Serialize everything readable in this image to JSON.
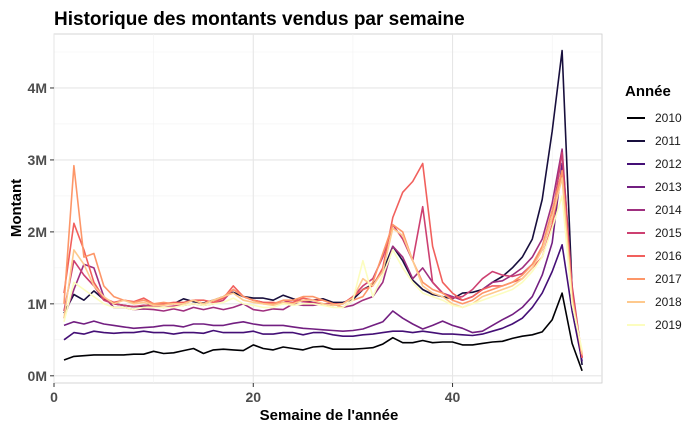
{
  "chart_data": {
    "type": "line",
    "title": "Historique des montants vendus par semaine",
    "xlabel": "Semaine de l'année",
    "ylabel": "Montant",
    "xlim": [
      0,
      55
    ],
    "ylim": [
      -0.1,
      4.75
    ],
    "y_unit": "millions",
    "x_ticks": [
      0,
      20,
      40
    ],
    "x_tick_labels": [
      "0",
      "20",
      "40"
    ],
    "y_ticks": [
      0,
      1,
      2,
      3,
      4
    ],
    "y_tick_labels": [
      "0M",
      "1M",
      "2M",
      "3M",
      "4M"
    ],
    "grid": true,
    "legend": {
      "title": "Année",
      "position": "right"
    },
    "series": [
      {
        "name": "2010",
        "color": "#000004",
        "x": [
          1,
          2,
          3,
          4,
          5,
          6,
          7,
          8,
          9,
          10,
          11,
          12,
          13,
          14,
          15,
          16,
          17,
          18,
          19,
          20,
          21,
          22,
          23,
          24,
          25,
          26,
          27,
          28,
          29,
          30,
          31,
          32,
          33,
          34,
          35,
          36,
          37,
          38,
          39,
          40,
          41,
          42,
          43,
          44,
          45,
          46,
          47,
          48,
          49,
          50,
          51,
          52,
          53
        ],
        "y": [
          0.22,
          0.27,
          0.28,
          0.29,
          0.29,
          0.29,
          0.29,
          0.3,
          0.3,
          0.34,
          0.31,
          0.32,
          0.35,
          0.38,
          0.31,
          0.36,
          0.37,
          0.36,
          0.35,
          0.43,
          0.38,
          0.36,
          0.4,
          0.38,
          0.36,
          0.4,
          0.41,
          0.37,
          0.37,
          0.37,
          0.38,
          0.39,
          0.44,
          0.53,
          0.46,
          0.46,
          0.49,
          0.46,
          0.47,
          0.47,
          0.43,
          0.43,
          0.45,
          0.47,
          0.48,
          0.52,
          0.55,
          0.57,
          0.61,
          0.78,
          1.15,
          0.45,
          0.07
        ]
      },
      {
        "name": "2011",
        "color": "#180f3d",
        "x": [
          1,
          2,
          3,
          4,
          5,
          6,
          7,
          8,
          9,
          10,
          11,
          12,
          13,
          14,
          15,
          16,
          17,
          18,
          19,
          20,
          21,
          22,
          23,
          24,
          25,
          26,
          27,
          28,
          29,
          30,
          31,
          32,
          33,
          34,
          35,
          36,
          37,
          38,
          39,
          40,
          41,
          42,
          43,
          44,
          45,
          46,
          47,
          48,
          49,
          50,
          51,
          52,
          53
        ],
        "y": [
          0.87,
          1.13,
          1.05,
          1.18,
          1.06,
          1.0,
          0.98,
          0.96,
          0.97,
          0.99,
          1.01,
          1.0,
          1.07,
          1.03,
          1.01,
          1.05,
          1.1,
          1.16,
          1.1,
          1.08,
          1.08,
          1.05,
          1.12,
          1.07,
          1.03,
          1.05,
          1.07,
          1.02,
          1.02,
          1.06,
          1.2,
          1.27,
          1.45,
          1.8,
          1.6,
          1.33,
          1.2,
          1.13,
          1.1,
          1.07,
          1.15,
          1.16,
          1.2,
          1.3,
          1.38,
          1.5,
          1.65,
          1.9,
          2.45,
          3.4,
          4.52,
          1.2,
          0.15
        ]
      },
      {
        "name": "2012",
        "color": "#440f76",
        "x": [
          1,
          2,
          3,
          4,
          5,
          6,
          7,
          8,
          9,
          10,
          11,
          12,
          13,
          14,
          15,
          16,
          17,
          18,
          19,
          20,
          21,
          22,
          23,
          24,
          25,
          26,
          27,
          28,
          29,
          30,
          31,
          32,
          33,
          34,
          35,
          36,
          37,
          38,
          39,
          40,
          41,
          42,
          43,
          44,
          45,
          46,
          47,
          48,
          49,
          50,
          51,
          52,
          53
        ],
        "y": [
          0.5,
          0.6,
          0.58,
          0.62,
          0.6,
          0.59,
          0.6,
          0.6,
          0.62,
          0.6,
          0.6,
          0.58,
          0.6,
          0.6,
          0.59,
          0.63,
          0.6,
          0.6,
          0.6,
          0.62,
          0.58,
          0.58,
          0.6,
          0.6,
          0.57,
          0.6,
          0.6,
          0.57,
          0.55,
          0.55,
          0.57,
          0.58,
          0.6,
          0.62,
          0.62,
          0.6,
          0.62,
          0.6,
          0.58,
          0.58,
          0.57,
          0.56,
          0.58,
          0.62,
          0.66,
          0.72,
          0.8,
          0.95,
          1.15,
          1.45,
          1.82,
          0.9,
          0.2
        ]
      },
      {
        "name": "2013",
        "color": "#721f81",
        "x": [
          1,
          2,
          3,
          4,
          5,
          6,
          7,
          8,
          9,
          10,
          11,
          12,
          13,
          14,
          15,
          16,
          17,
          18,
          19,
          20,
          21,
          22,
          23,
          24,
          25,
          26,
          27,
          28,
          29,
          30,
          31,
          32,
          33,
          34,
          35,
          36,
          37,
          38,
          39,
          40,
          41,
          42,
          43,
          44,
          45,
          46,
          47,
          48,
          49,
          50,
          51,
          52,
          53
        ],
        "y": [
          0.7,
          0.75,
          0.72,
          0.76,
          0.72,
          0.7,
          0.68,
          0.66,
          0.67,
          0.68,
          0.7,
          0.7,
          0.68,
          0.72,
          0.72,
          0.7,
          0.7,
          0.73,
          0.75,
          0.72,
          0.7,
          0.7,
          0.7,
          0.68,
          0.66,
          0.65,
          0.64,
          0.63,
          0.62,
          0.63,
          0.65,
          0.7,
          0.75,
          0.9,
          0.8,
          0.72,
          0.65,
          0.7,
          0.76,
          0.7,
          0.66,
          0.6,
          0.62,
          0.7,
          0.78,
          0.85,
          0.95,
          1.1,
          1.4,
          1.85,
          2.95,
          1.1,
          0.25
        ]
      },
      {
        "name": "2014",
        "color": "#9f2f7f",
        "x": [
          1,
          2,
          3,
          4,
          5,
          6,
          7,
          8,
          9,
          10,
          11,
          12,
          13,
          14,
          15,
          16,
          17,
          18,
          19,
          20,
          21,
          22,
          23,
          24,
          25,
          26,
          27,
          28,
          29,
          30,
          31,
          32,
          33,
          34,
          35,
          36,
          37,
          38,
          39,
          40,
          41,
          42,
          43,
          44,
          45,
          46,
          47,
          48,
          49,
          50,
          51,
          52,
          53
        ],
        "y": [
          0.8,
          1.2,
          1.55,
          1.5,
          1.1,
          0.95,
          0.95,
          0.92,
          0.93,
          0.92,
          0.9,
          0.93,
          0.9,
          0.95,
          0.92,
          0.95,
          0.92,
          0.95,
          1.0,
          0.92,
          0.9,
          0.93,
          0.92,
          1.0,
          0.98,
          0.98,
          1.0,
          1.0,
          0.95,
          0.98,
          1.05,
          1.1,
          1.3,
          1.8,
          1.65,
          1.35,
          1.5,
          1.3,
          1.15,
          1.1,
          1.05,
          1.1,
          1.2,
          1.3,
          1.32,
          1.4,
          1.5,
          1.65,
          1.9,
          2.4,
          3.15,
          1.2,
          0.25
        ]
      },
      {
        "name": "2015",
        "color": "#cd4071",
        "x": [
          1,
          2,
          3,
          4,
          5,
          6,
          7,
          8,
          9,
          10,
          11,
          12,
          13,
          14,
          15,
          16,
          17,
          18,
          19,
          20,
          21,
          22,
          23,
          24,
          25,
          26,
          27,
          28,
          29,
          30,
          31,
          32,
          33,
          34,
          35,
          36,
          37,
          38,
          39,
          40,
          41,
          42,
          43,
          44,
          45,
          46,
          47,
          48,
          49,
          50,
          51,
          52,
          53
        ],
        "y": [
          0.9,
          1.6,
          1.4,
          1.25,
          1.05,
          1.0,
          0.98,
          0.96,
          0.98,
          0.97,
          0.95,
          0.97,
          0.98,
          1.0,
          0.98,
          1.0,
          1.05,
          1.2,
          1.1,
          1.05,
          1.02,
          1.0,
          1.02,
          1.05,
          1.03,
          1.02,
          1.0,
          0.98,
          1.0,
          1.1,
          1.25,
          1.35,
          1.65,
          2.1,
          1.9,
          1.6,
          2.35,
          1.3,
          1.15,
          1.08,
          1.1,
          1.2,
          1.35,
          1.45,
          1.4,
          1.38,
          1.42,
          1.55,
          1.75,
          2.2,
          3.1,
          1.25,
          0.25
        ]
      },
      {
        "name": "2016",
        "color": "#f1605d",
        "x": [
          1,
          2,
          3,
          4,
          5,
          6,
          7,
          8,
          9,
          10,
          11,
          12,
          13,
          14,
          15,
          16,
          17,
          18,
          19,
          20,
          21,
          22,
          23,
          24,
          25,
          26,
          27,
          28,
          29,
          30,
          31,
          32,
          33,
          34,
          35,
          36,
          37,
          38,
          39,
          40,
          41,
          42,
          43,
          44,
          45,
          46,
          47,
          48,
          49,
          50,
          51,
          52,
          53
        ],
        "y": [
          1.15,
          2.12,
          1.75,
          1.3,
          1.08,
          1.02,
          1.05,
          1.03,
          1.08,
          1.0,
          1.0,
          1.02,
          1.02,
          1.05,
          1.05,
          1.02,
          1.08,
          1.25,
          1.1,
          1.05,
          1.02,
          1.02,
          1.0,
          1.02,
          1.08,
          1.05,
          1.05,
          1.0,
          1.0,
          1.1,
          1.2,
          1.25,
          1.5,
          2.2,
          2.55,
          2.7,
          2.95,
          1.8,
          1.3,
          1.15,
          1.05,
          1.1,
          1.2,
          1.25,
          1.25,
          1.3,
          1.35,
          1.5,
          1.65,
          2.1,
          2.85,
          1.15,
          0.25
        ]
      },
      {
        "name": "2017",
        "color": "#fd9668",
        "x": [
          1,
          2,
          3,
          4,
          5,
          6,
          7,
          8,
          9,
          10,
          11,
          12,
          13,
          14,
          15,
          16,
          17,
          18,
          19,
          20,
          21,
          22,
          23,
          24,
          25,
          26,
          27,
          28,
          29,
          30,
          31,
          32,
          33,
          34,
          35,
          36,
          37,
          38,
          39,
          40,
          41,
          42,
          43,
          44,
          45,
          46,
          47,
          48,
          49,
          50,
          51,
          52,
          53
        ],
        "y": [
          1.0,
          2.92,
          1.65,
          1.7,
          1.25,
          1.1,
          1.05,
          1.02,
          1.05,
          1.0,
          1.02,
          1.0,
          1.0,
          1.05,
          1.0,
          1.05,
          1.1,
          1.2,
          1.1,
          1.05,
          1.0,
          1.0,
          1.05,
          1.05,
          1.1,
          1.1,
          1.05,
          1.0,
          0.95,
          1.05,
          1.1,
          1.3,
          1.7,
          2.1,
          2.0,
          1.6,
          1.3,
          1.2,
          1.15,
          1.05,
          1.0,
          1.05,
          1.15,
          1.2,
          1.25,
          1.3,
          1.4,
          1.55,
          1.8,
          2.3,
          2.85,
          1.1,
          0.3
        ]
      },
      {
        "name": "2018",
        "color": "#fec98d",
        "x": [
          1,
          2,
          3,
          4,
          5,
          6,
          7,
          8,
          9,
          10,
          11,
          12,
          13,
          14,
          15,
          16,
          17,
          18,
          19,
          20,
          21,
          22,
          23,
          24,
          25,
          26,
          27,
          28,
          29,
          30,
          31,
          32,
          33,
          34,
          35,
          36,
          37,
          38,
          39,
          40,
          41,
          42,
          43,
          44,
          45,
          46,
          47,
          48,
          49,
          50,
          51,
          52,
          53
        ],
        "y": [
          0.8,
          1.75,
          1.55,
          1.25,
          1.1,
          1.0,
          1.05,
          1.0,
          1.02,
          0.98,
          0.98,
          1.0,
          1.0,
          1.05,
          1.0,
          1.05,
          1.1,
          1.15,
          1.05,
          1.02,
          1.0,
          0.98,
          1.02,
          1.0,
          1.05,
          1.05,
          1.0,
          0.98,
          1.0,
          1.08,
          1.35,
          1.25,
          1.45,
          2.05,
          1.95,
          1.6,
          1.25,
          1.15,
          1.1,
          1.0,
          0.95,
          1.0,
          1.1,
          1.15,
          1.2,
          1.25,
          1.35,
          1.5,
          1.75,
          2.2,
          2.75,
          1.05,
          0.3
        ]
      },
      {
        "name": "2019",
        "color": "#fcfdbf",
        "x": [
          1,
          2,
          3,
          4,
          5,
          6,
          7,
          8,
          9,
          10,
          11,
          12,
          13,
          14,
          15,
          16,
          17,
          18,
          19,
          20,
          21,
          22,
          23,
          24,
          25,
          26,
          27,
          28,
          29,
          30,
          31,
          32,
          33,
          34,
          35,
          36,
          37,
          38,
          39,
          40,
          41,
          42,
          43,
          44,
          45,
          46,
          47,
          48,
          49,
          50,
          51,
          52,
          53
        ],
        "y": [
          0.75,
          1.3,
          1.2,
          1.1,
          1.0,
          0.95,
          0.95,
          0.92,
          0.95,
          0.95,
          0.95,
          0.95,
          0.98,
          1.0,
          0.98,
          1.0,
          1.02,
          1.08,
          1.0,
          0.98,
          0.95,
          0.95,
          1.0,
          0.98,
          1.0,
          1.0,
          0.98,
          0.95,
          0.95,
          1.05,
          1.6,
          1.1,
          1.4,
          1.75,
          1.5,
          1.3,
          1.15,
          1.1,
          1.05,
          0.98,
          0.95,
          1.0,
          1.05,
          1.1,
          1.15,
          1.2,
          1.3,
          1.45,
          1.65,
          2.05,
          2.5,
          1.0,
          0.35
        ]
      }
    ]
  }
}
